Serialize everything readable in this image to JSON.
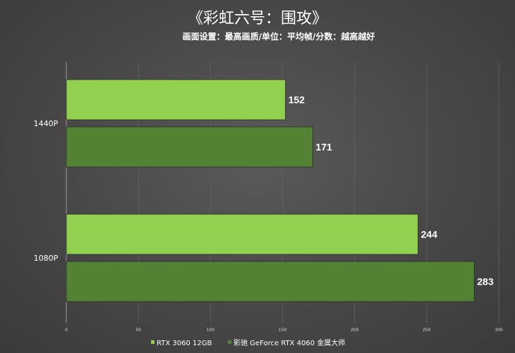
{
  "chart_data": {
    "type": "bar",
    "orientation": "horizontal",
    "title": "《彩虹六号：围攻》",
    "subtitle": "画面设置：最高画质/单位：平均帧/分数：越高越好",
    "categories": [
      "1440P",
      "1080P"
    ],
    "series": [
      {
        "name": "RTX 3060 12GB",
        "color": "#92d050",
        "values": [
          152,
          244
        ]
      },
      {
        "name": "影驰 GeForce RTX 4060 金属大师",
        "color": "#548235",
        "values": [
          171,
          283
        ]
      }
    ],
    "xlim": [
      0,
      300
    ],
    "xticks": [
      0,
      50,
      100,
      150,
      200,
      250,
      300
    ],
    "legend_position": "bottom",
    "grid": true
  }
}
